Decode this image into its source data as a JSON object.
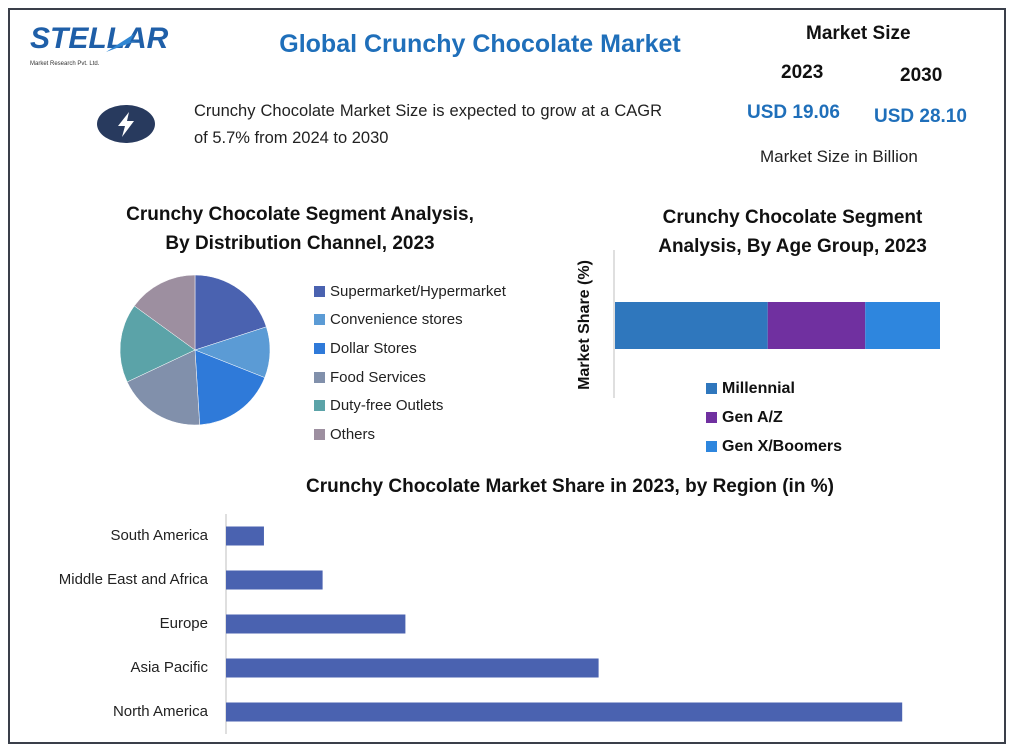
{
  "header": {
    "logo_text": "STELLAR",
    "logo_subtext": "Market Research Pvt. Ltd.",
    "title": "Global Crunchy Chocolate Market",
    "cagr_text": "Crunchy Chocolate Market Size is expected to grow at a CAGR of 5.7% from 2024 to 2030",
    "icon": "lightning-icon"
  },
  "market_size": {
    "label": "Market Size",
    "year_start": "2023",
    "year_end": "2030",
    "value_start": "USD 19.06",
    "value_end": "USD 28.10",
    "unit_note": "Market Size in Billion"
  },
  "colors": {
    "accent_blue": "#1f6fba",
    "icon_dark": "#283a5e",
    "region_bar": "#4a62b0"
  },
  "chart_data": [
    {
      "type": "pie",
      "title": "Crunchy Chocolate Segment Analysis, By Distribution Channel, 2023",
      "title_line1": "Crunchy Chocolate Segment Analysis,",
      "title_line2": "By Distribution Channel, 2023",
      "categories": [
        "Supermarket/Hypermarket",
        "Convenience stores",
        "Dollar Stores",
        "Food Services",
        "Duty-free Outlets",
        "Others"
      ],
      "values": [
        20,
        11,
        18,
        19,
        17,
        15
      ],
      "colors": [
        "#4a62b0",
        "#5b9bd5",
        "#2f7ad9",
        "#8190ab",
        "#5ba3a8",
        "#9d8fa0"
      ],
      "legend": "right"
    },
    {
      "type": "bar",
      "orientation": "horizontal-stacked",
      "title": "Crunchy Chocolate Segment Analysis, By Age Group, 2023",
      "title_line1": "Crunchy Chocolate Segment",
      "title_line2": "Analysis, By Age Group, 2023",
      "ylabel": "Market Share (%)",
      "series": [
        {
          "name": "Millennial",
          "values": [
            47
          ],
          "color": "#2f77bd"
        },
        {
          "name": "Gen A/Z",
          "values": [
            30
          ],
          "color": "#7030a0"
        },
        {
          "name": "Gen X/Boomers",
          "values": [
            23
          ],
          "color": "#2e86de"
        }
      ],
      "legend": "bottom"
    },
    {
      "type": "bar",
      "orientation": "horizontal",
      "title": "Crunchy Chocolate Market Share in 2023, by Region (in %)",
      "categories": [
        "South America",
        "Middle East and Africa",
        "Europe",
        "Asia Pacific",
        "North America"
      ],
      "values": [
        5.5,
        14,
        26,
        54,
        98
      ],
      "xlim": [
        0,
        100
      ],
      "grid": false,
      "color": "#4a62b0"
    }
  ]
}
